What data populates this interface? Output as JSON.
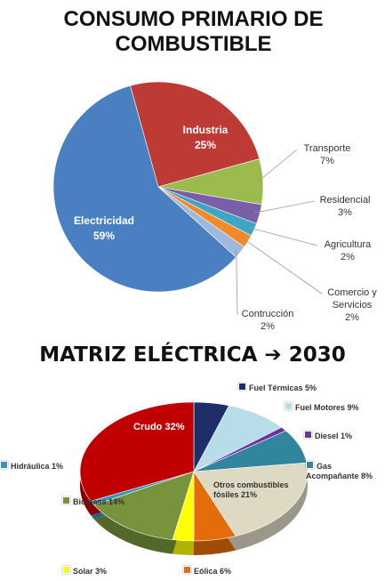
{
  "chart_data": [
    {
      "type": "pie",
      "title": "CONSUMO PRIMARIO DE COMBUSTIBLE",
      "categories": [
        "Industria",
        "Transporte",
        "Residencial",
        "Agricultura",
        "Comercio y Servicios",
        "Contrucción",
        "Electricidad"
      ],
      "values": [
        25,
        7,
        3,
        2,
        2,
        2,
        59
      ],
      "value_labels": [
        "25%",
        "7%",
        "3%",
        "2%",
        "2%",
        "2%",
        "59%"
      ],
      "colors": [
        "#be3a35",
        "#9bbb4f",
        "#7a5ea8",
        "#3ea5c2",
        "#f08a2b",
        "#9fb8dd",
        "#4a7fc1"
      ]
    },
    {
      "type": "pie",
      "title": "MATRIZ  ELÉCTRICA ➔ 2030",
      "categories": [
        "Fuel Térmicas",
        "Fuel Motores",
        "Diesel",
        "Gas Acompañante",
        "Otros combustibles fósiles",
        "Eólica",
        "Solar",
        "Biomasa",
        "Hidráulica",
        "Crudo"
      ],
      "values": [
        5,
        9,
        1,
        8,
        21,
        6,
        3,
        14,
        1,
        32
      ],
      "value_labels": [
        "5%",
        "9%",
        "1%",
        "8%",
        "21%",
        "6%",
        "3%",
        "14%",
        "1%",
        "32%"
      ],
      "colors": [
        "#1f2d6b",
        "#b7dde8",
        "#7030a0",
        "#31859c",
        "#ddd9c3",
        "#e46c0a",
        "#ffff00",
        "#77933c",
        "#2e95c5",
        "#c00000"
      ]
    }
  ]
}
